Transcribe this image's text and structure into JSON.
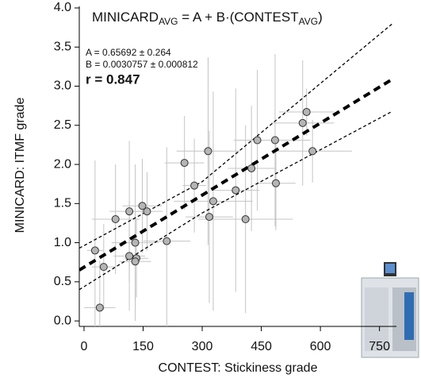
{
  "chart_data": {
    "type": "scatter",
    "title_parts": [
      "MINICARD",
      "AVG",
      " = A + B·(CONTEST",
      "AVG",
      ")"
    ],
    "annotations": [
      "A = 0.65692 ± 0.264",
      "B = 0.0030757 ± 0.000812",
      "r = 0.847"
    ],
    "xlabel": "CONTEST: Stickiness grade",
    "ylabel": "MINICARD: ITMF grade",
    "xlim": [
      -12,
      793
    ],
    "ylim": [
      -0.07,
      4.0
    ],
    "xticks": [
      0,
      150,
      300,
      450,
      600,
      750
    ],
    "yticks": [
      {
        "value": 0,
        "label": "0.0"
      },
      0.5,
      {
        "value": 1,
        "label": "1.0"
      },
      1.5,
      {
        "value": 2,
        "label": "2.0"
      },
      2.5,
      {
        "value": 3,
        "label": "3.0"
      },
      3.5,
      {
        "value": 4,
        "label": "4.0"
      }
    ],
    "series": [
      {
        "color": "#b5b5b5",
        "x": [
          28,
          40,
          50,
          80,
          115,
          115,
          130,
          133,
          130,
          148,
          160,
          210,
          255,
          280,
          315,
          318,
          328,
          385,
          410,
          425,
          440,
          485,
          487,
          555,
          565,
          580
        ],
        "values": [
          0.9,
          0.17,
          0.69,
          1.3,
          1.4,
          0.83,
          1.0,
          0.8,
          0.76,
          1.47,
          1.4,
          1.02,
          2.02,
          1.73,
          2.17,
          1.33,
          1.53,
          1.67,
          1.3,
          1.95,
          2.31,
          2.31,
          1.76,
          2.53,
          2.67,
          2.17
        ],
        "xerr": [
          20,
          40,
          30,
          60,
          50,
          40,
          60,
          30,
          40,
          50,
          40,
          60,
          50,
          30,
          80,
          60,
          100,
          60,
          120,
          60,
          60,
          90,
          50,
          80,
          70,
          100
        ],
        "yerr": [
          1.15,
          0.6,
          0.55,
          0.7,
          0.9,
          0.7,
          1.0,
          0.5,
          0.6,
          0.6,
          0.5,
          1.2,
          0.6,
          0.6,
          1.2,
          1.1,
          1.4,
          1.3,
          1.2,
          0.8,
          0.9,
          1.1,
          0.6,
          0.8,
          0.3,
          0.4
        ],
        "error_color": "#c4c4c4"
      }
    ],
    "fit_lines": [
      {
        "x": [
          -12,
          783
        ],
        "values": [
          0.65,
          3.09
        ],
        "width": 4,
        "dash": "9 6"
      },
      {
        "x": [
          -12,
          300,
          783
        ],
        "values": [
          0.93,
          1.78,
          3.8
        ],
        "width": 1.3,
        "dash": "4 3"
      },
      {
        "x": [
          -12,
          300,
          783
        ],
        "values": [
          0.4,
          1.38,
          2.68
        ],
        "width": 1.3,
        "dash": "4 3"
      }
    ],
    "line_color": "#000000"
  }
}
